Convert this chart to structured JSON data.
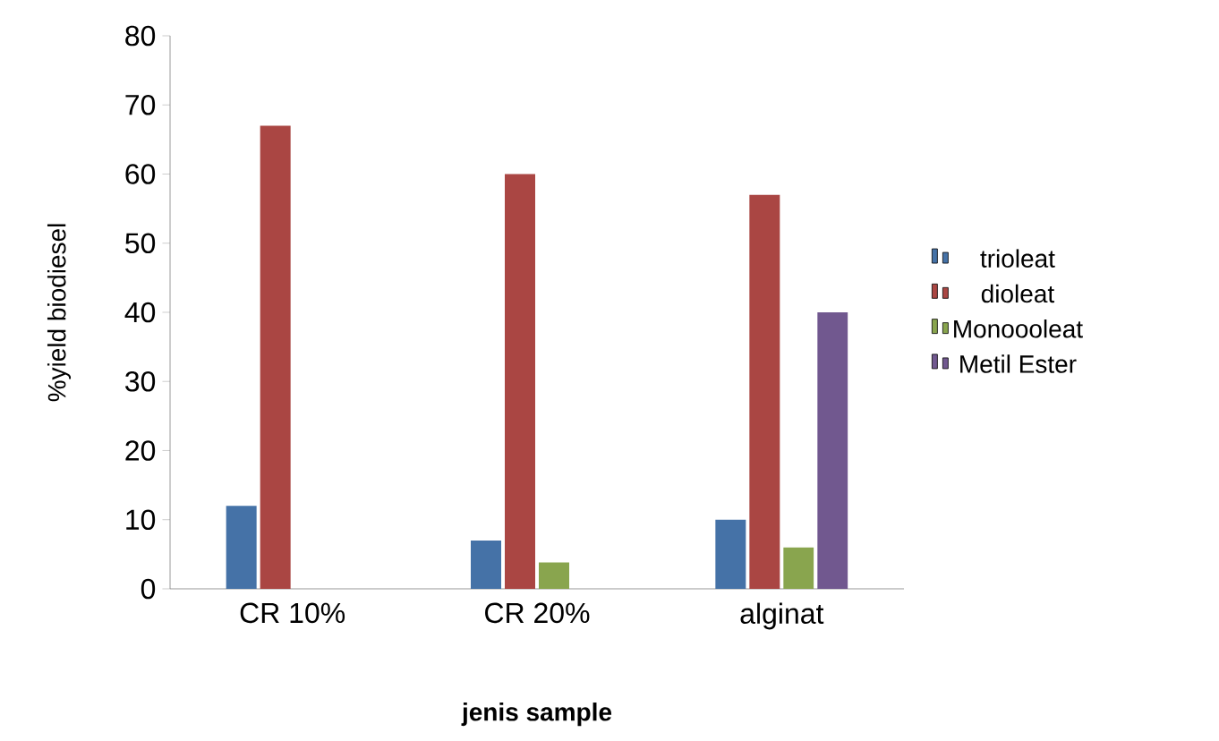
{
  "chart_data": {
    "type": "bar",
    "xlabel": "jenis sample",
    "ylabel": "%yield biodiesel",
    "categories": [
      "CR 10%",
      "CR 20%",
      "alginat"
    ],
    "series": [
      {
        "name": "trioleat",
        "color": "#4572a7",
        "values": [
          12,
          7,
          10
        ]
      },
      {
        "name": "dioleat",
        "color": "#aa4643",
        "values": [
          67,
          60,
          57
        ]
      },
      {
        "name": "Monoooleat",
        "color": "#89a54e",
        "values": [
          0,
          3.8,
          6
        ]
      },
      {
        "name": "Metil Ester",
        "color": "#71588f",
        "values": [
          0,
          0,
          40
        ]
      }
    ],
    "ylim": [
      0,
      80
    ],
    "yticks": [
      0,
      10,
      20,
      30,
      40,
      50,
      60,
      70,
      80
    ],
    "grid": false,
    "legend": "right"
  }
}
